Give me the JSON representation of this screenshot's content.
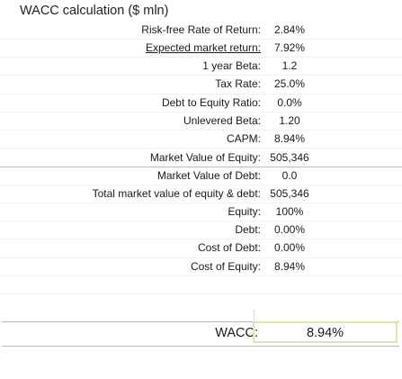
{
  "title": "WACC calculation ($ mln)",
  "rows": [
    {
      "label": "Risk-free Rate of Return:",
      "value": "2.84%"
    },
    {
      "label": "Expected market return:",
      "value": "7.92%"
    },
    {
      "label": "1 year Beta:",
      "value": "1.2"
    },
    {
      "label": "Tax Rate:",
      "value": "25.0%"
    },
    {
      "label": "Debt to Equity Ratio:",
      "value": "0.0%"
    },
    {
      "label": "Unlevered Beta:",
      "value": "1.20"
    },
    {
      "label": "CAPM:",
      "value": "8.94%"
    },
    {
      "label": "Market Value of Equity:",
      "value": "505,346"
    },
    {
      "label": "Market Value of Debt:",
      "value": "0.0"
    },
    {
      "label": "Total market value of equity & debt:",
      "value": "505,346"
    },
    {
      "label": "Equity:",
      "value": "100%"
    },
    {
      "label": "Debt:",
      "value": "0.00%"
    },
    {
      "label": "Cost of Debt:",
      "value": "0.00%"
    },
    {
      "label": "Cost of Equity:",
      "value": "8.94%"
    }
  ],
  "wacc": {
    "label": "WACC:",
    "value": "8.94%"
  }
}
